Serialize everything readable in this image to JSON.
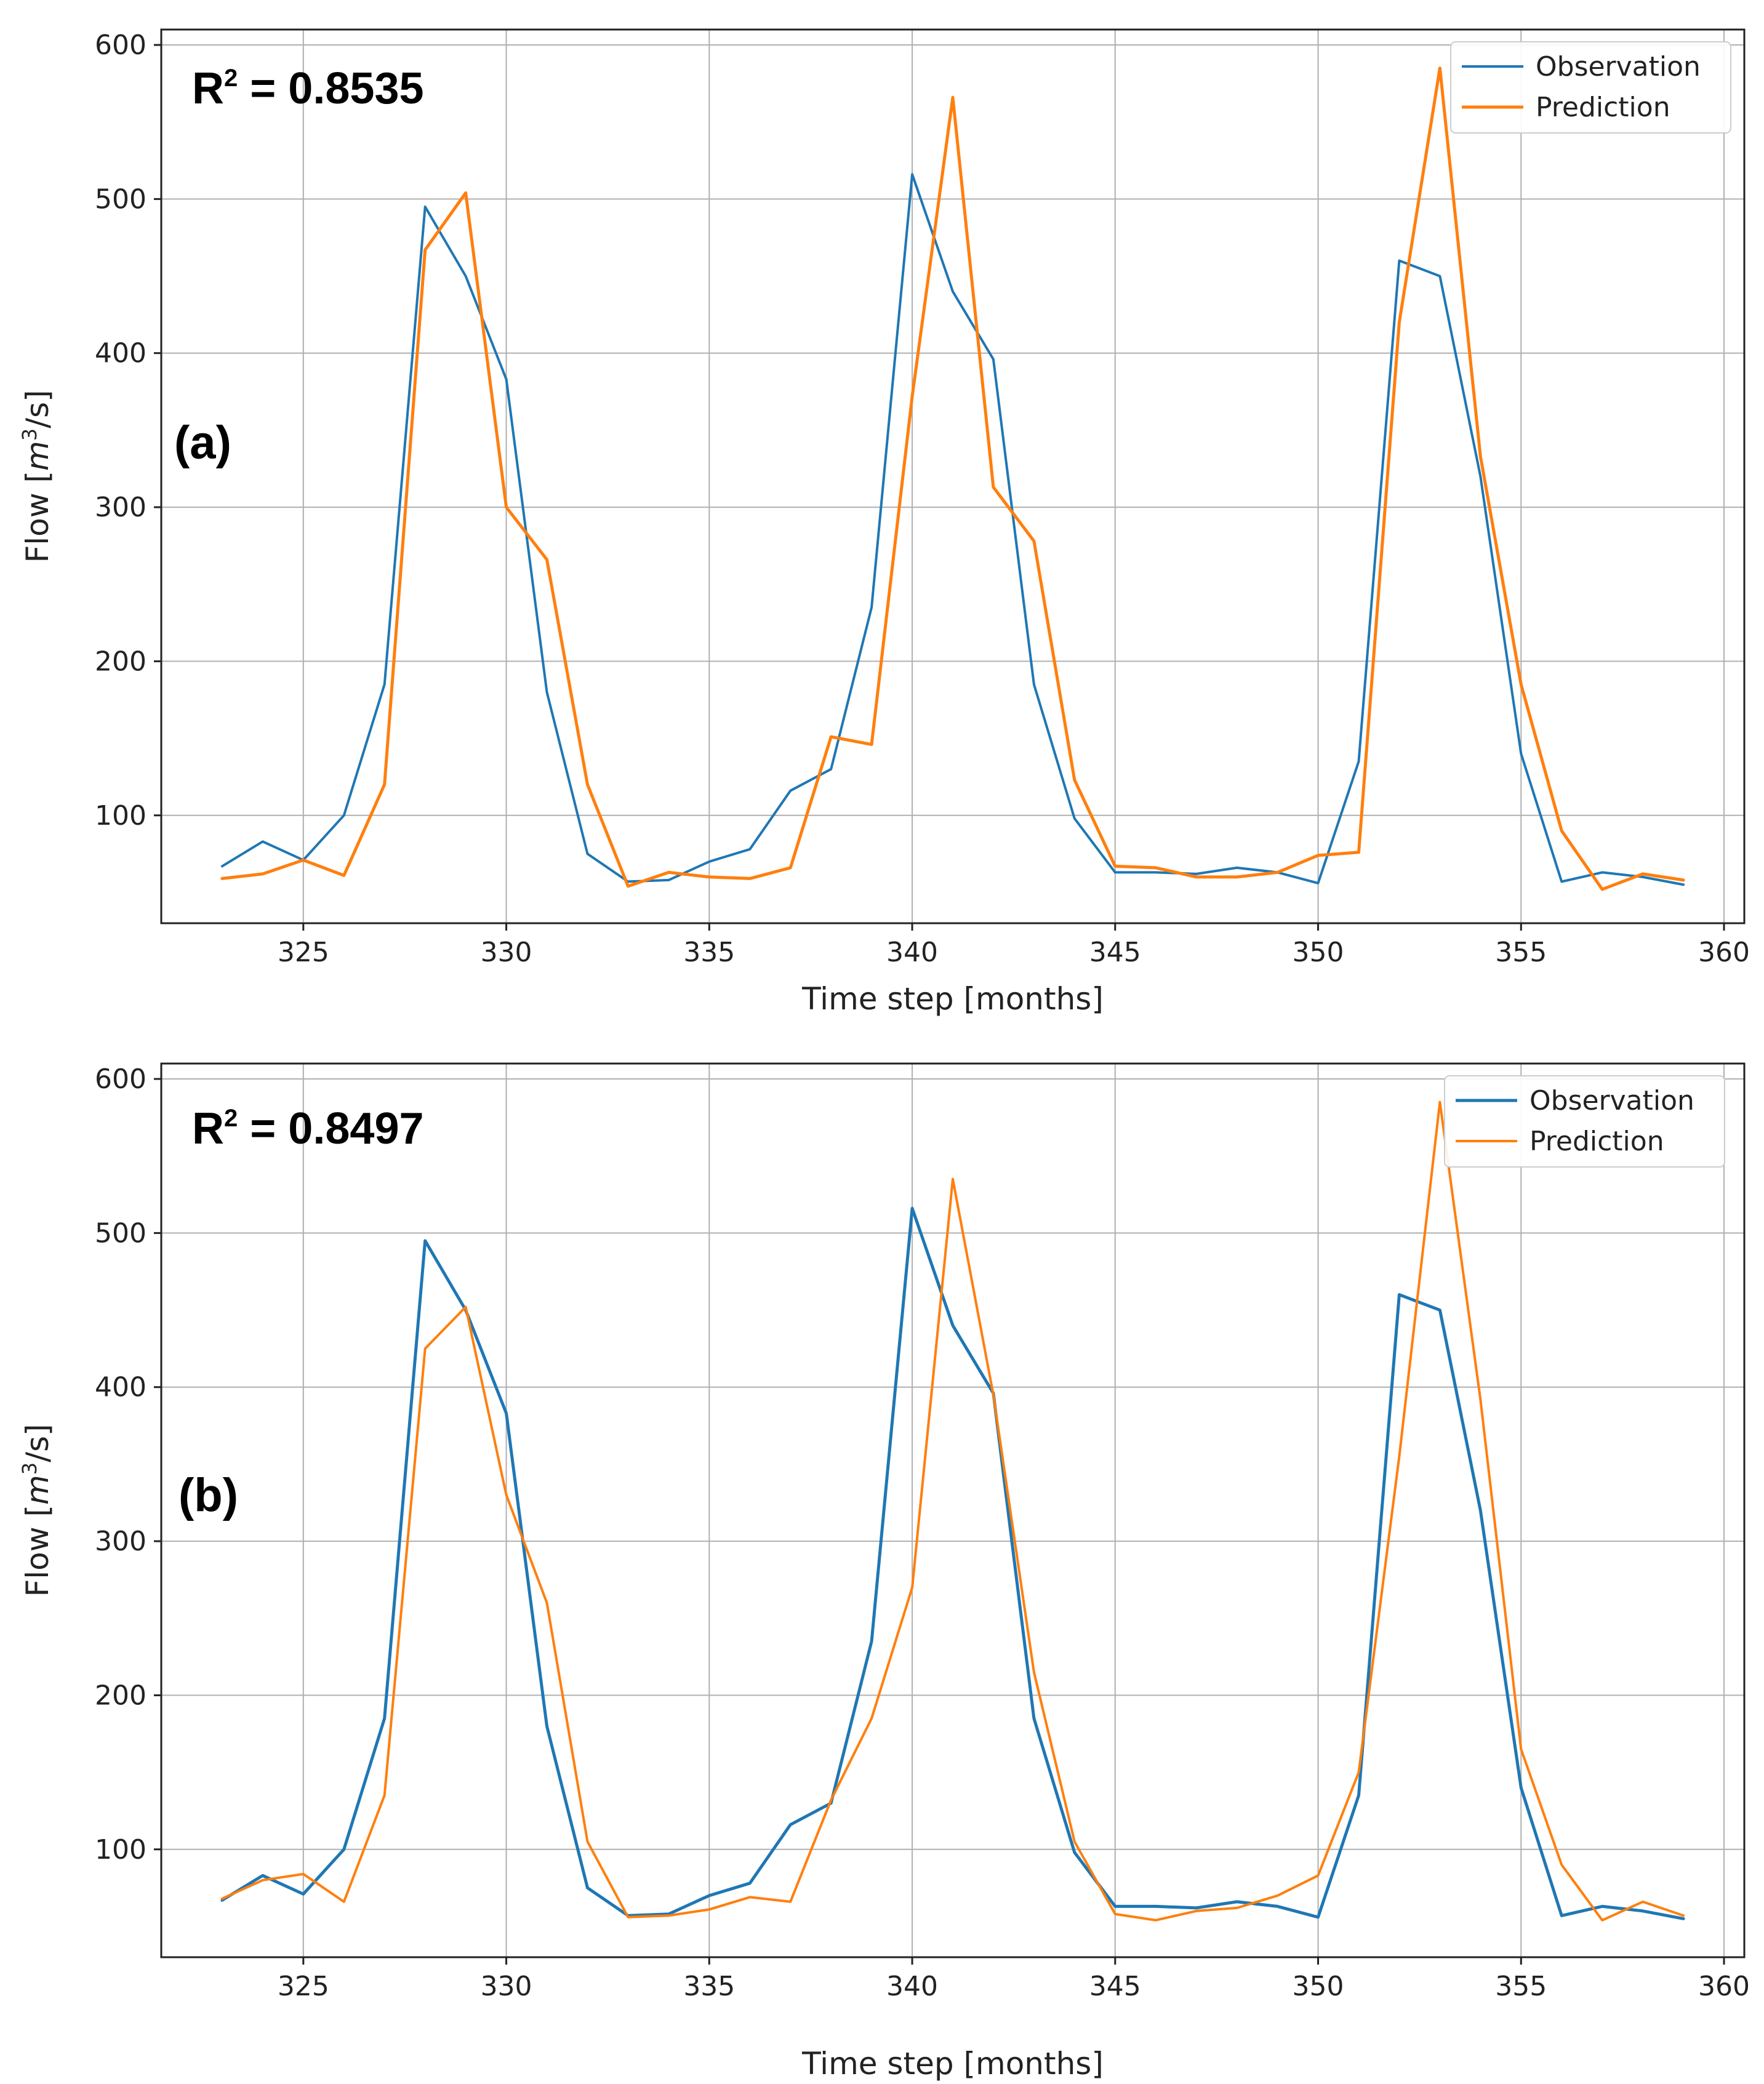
{
  "chart_data": [
    {
      "type": "line",
      "panel_label": "(a)",
      "annotation": {
        "prefix": "R",
        "superscript": "2",
        "text": " = 0.8535"
      },
      "xlabel": "Time step [months]",
      "ylabel": {
        "prefix": "Flow [",
        "italic": "m",
        "sup": "3",
        "suffix": "/s]"
      },
      "xlim": [
        321.5,
        360.5
      ],
      "ylim": [
        30,
        610
      ],
      "xticks": [
        325,
        330,
        335,
        340,
        345,
        350,
        355,
        360
      ],
      "yticks": [
        100,
        200,
        300,
        400,
        500,
        600
      ],
      "grid": true,
      "legend": {
        "position": "top-right",
        "entries": [
          "Observation",
          "Prediction"
        ]
      },
      "x": [
        323,
        324,
        325,
        326,
        327,
        328,
        329,
        330,
        331,
        332,
        333,
        334,
        335,
        336,
        337,
        338,
        339,
        340,
        341,
        342,
        343,
        344,
        345,
        346,
        347,
        348,
        349,
        350,
        351,
        352,
        353,
        354,
        355,
        356,
        357,
        358,
        359
      ],
      "series": [
        {
          "name": "Observation",
          "color": "#1f77b4",
          "line_width": 4,
          "values": [
            67,
            83,
            71,
            100,
            185,
            495,
            450,
            383,
            180,
            75,
            57,
            58,
            70,
            78,
            116,
            130,
            235,
            516,
            440,
            396,
            185,
            98,
            63,
            63,
            62,
            66,
            63,
            56,
            135,
            460,
            450,
            320,
            140,
            57,
            63,
            60,
            55
          ]
        },
        {
          "name": "Prediction",
          "color": "#ff7f0e",
          "line_width": 5,
          "values": [
            59,
            62,
            71,
            61,
            120,
            467,
            504,
            300,
            266,
            120,
            54,
            63,
            60,
            59,
            66,
            151,
            146,
            372,
            566,
            313,
            278,
            123,
            67,
            66,
            60,
            60,
            63,
            74,
            76,
            420,
            585,
            333,
            185,
            90,
            52,
            62,
            58
          ]
        }
      ]
    },
    {
      "type": "line",
      "panel_label": "(b)",
      "annotation": {
        "prefix": "R",
        "superscript": "2",
        "text": " = 0.8497"
      },
      "xlabel": "Time step [months]",
      "ylabel": {
        "prefix": "Flow [",
        "italic": "m",
        "sup": "3",
        "suffix": "/s]"
      },
      "xlim": [
        321.5,
        360.5
      ],
      "ylim": [
        30,
        610
      ],
      "xticks": [
        325,
        330,
        335,
        340,
        345,
        350,
        355,
        360
      ],
      "yticks": [
        100,
        200,
        300,
        400,
        500,
        600
      ],
      "grid": true,
      "legend": {
        "position": "top-right",
        "entries": [
          "Observation",
          "Prediction"
        ]
      },
      "x": [
        323,
        324,
        325,
        326,
        327,
        328,
        329,
        330,
        331,
        332,
        333,
        334,
        335,
        336,
        337,
        338,
        339,
        340,
        341,
        342,
        343,
        344,
        345,
        346,
        347,
        348,
        349,
        350,
        351,
        352,
        353,
        354,
        355,
        356,
        357,
        358,
        359
      ],
      "series": [
        {
          "name": "Observation",
          "color": "#1f77b4",
          "line_width": 5,
          "values": [
            67,
            83,
            71,
            100,
            185,
            495,
            450,
            383,
            180,
            75,
            57,
            58,
            70,
            78,
            116,
            130,
            235,
            516,
            440,
            396,
            185,
            98,
            63,
            63,
            62,
            66,
            63,
            56,
            135,
            460,
            450,
            320,
            140,
            57,
            63,
            60,
            55
          ]
        },
        {
          "name": "Prediction",
          "color": "#ff7f0e",
          "line_width": 4,
          "values": [
            68,
            80,
            84,
            66,
            135,
            425,
            452,
            330,
            260,
            105,
            56,
            57,
            61,
            69,
            66,
            132,
            185,
            270,
            535,
            395,
            215,
            105,
            58,
            54,
            60,
            62,
            70,
            83,
            150,
            355,
            585,
            392,
            165,
            90,
            54,
            66,
            57
          ]
        }
      ]
    }
  ]
}
